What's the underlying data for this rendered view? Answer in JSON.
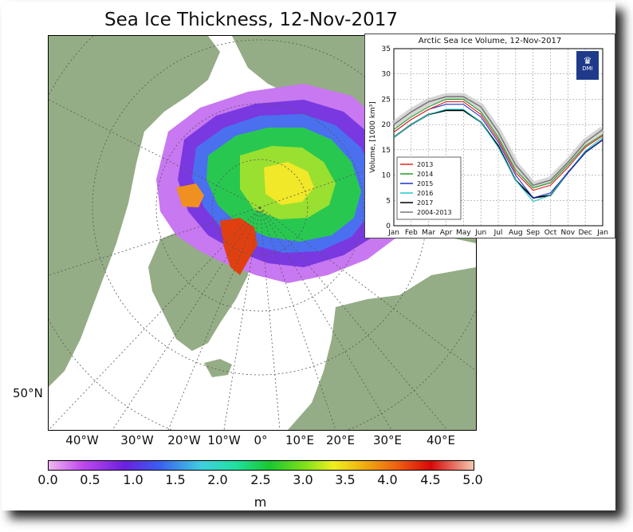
{
  "title": "Sea Ice Thickness, 12-Nov-2017",
  "map": {
    "latitude_label": "50°N",
    "longitude_labels": [
      "40°W",
      "30°W",
      "20°W",
      "10°W",
      "0°",
      "10°E",
      "20°E",
      "30°E",
      "40°E"
    ],
    "colors": {
      "land": "#95ad86",
      "ocean": "#ffffff",
      "graticule": "#555555"
    }
  },
  "colorbar": {
    "ticks": [
      "0.0",
      "0.5",
      "1.0",
      "1.5",
      "2.0",
      "2.5",
      "3.0",
      "3.5",
      "4.0",
      "4.5",
      "5.0"
    ],
    "unit": "m",
    "range": [
      0,
      5
    ]
  },
  "inset": {
    "logo_text": "DMI",
    "chart_data": {
      "type": "line",
      "title": "Arctic Sea Ice Volume, 12-Nov-2017",
      "ylabel": "Volume, [1000 km³]",
      "xlabel": "",
      "ylim": [
        0,
        35
      ],
      "yticks": [
        "0",
        "5",
        "10",
        "15",
        "20",
        "25",
        "30",
        "35"
      ],
      "categories": [
        "Jan",
        "Feb",
        "Mar",
        "Apr",
        "May",
        "Jun",
        "Jul",
        "Aug",
        "Sep",
        "Oct",
        "Nov",
        "Dec",
        "Jan"
      ],
      "grid": true,
      "legend": "lower-left",
      "series": [
        {
          "name": "2013",
          "color": "#e82020",
          "values": [
            18.5,
            21.0,
            23.0,
            24.5,
            24.5,
            22.0,
            17.0,
            10.5,
            7.0,
            8.0,
            11.5,
            15.5,
            17.8
          ]
        },
        {
          "name": "2014",
          "color": "#20a020",
          "values": [
            19.0,
            21.5,
            23.5,
            25.0,
            25.0,
            22.5,
            17.5,
            11.0,
            7.5,
            8.5,
            12.0,
            15.8,
            18.0
          ]
        },
        {
          "name": "2015",
          "color": "#2030c8",
          "values": [
            18.5,
            21.0,
            23.0,
            24.0,
            24.0,
            21.5,
            16.5,
            10.0,
            5.5,
            6.5,
            10.5,
            14.5,
            17.0
          ]
        },
        {
          "name": "2016",
          "color": "#20c8c8",
          "values": [
            17.5,
            20.0,
            22.0,
            23.0,
            23.0,
            20.5,
            15.5,
            9.0,
            4.8,
            6.0,
            10.5,
            14.8,
            17.5
          ]
        },
        {
          "name": "2017",
          "color": "#000000",
          "values": [
            17.5,
            20.0,
            22.0,
            22.8,
            22.8,
            20.5,
            15.8,
            9.0,
            5.5,
            6.0,
            10.5,
            14.5,
            17.0
          ]
        },
        {
          "name": "2004-2013",
          "color": "#777777",
          "values": [
            20.0,
            22.5,
            24.5,
            25.5,
            25.5,
            23.5,
            18.5,
            12.0,
            8.0,
            9.0,
            12.5,
            16.5,
            19.0
          ]
        }
      ]
    }
  }
}
